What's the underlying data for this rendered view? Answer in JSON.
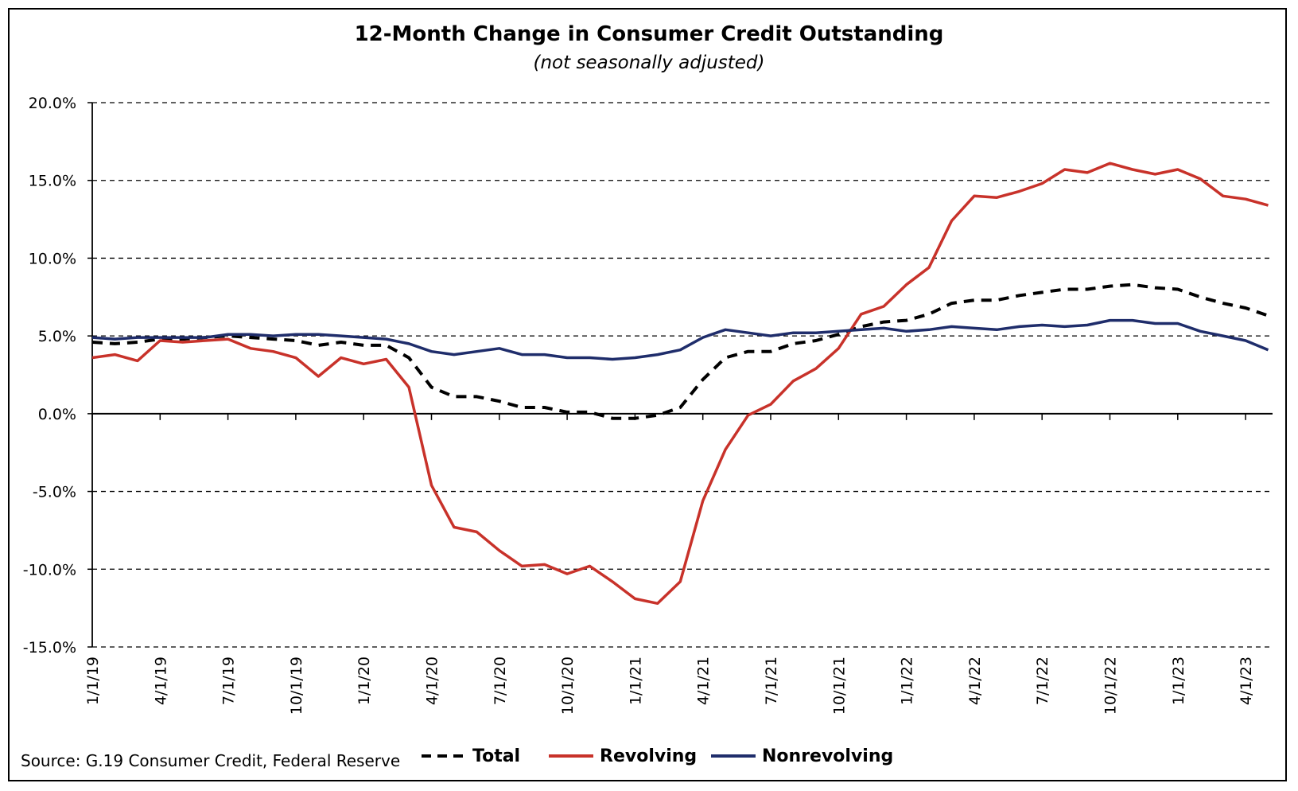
{
  "chart_data": {
    "type": "line",
    "title": "12-Month Change in Consumer Credit Outstanding",
    "subtitle": "(not seasonally adjusted)",
    "source": "Source: G.19 Consumer Credit, Federal Reserve",
    "ylim": [
      -15,
      20
    ],
    "y_ticks": [
      20,
      15,
      10,
      5,
      0,
      -5,
      -10,
      -15
    ],
    "y_tick_labels": [
      "20.0%",
      "15.0%",
      "10.0%",
      "5.0%",
      "0.0%",
      "-5.0%",
      "-10.0%",
      "-15.0%"
    ],
    "x_tick_labels": [
      "1/1/19",
      "4/1/19",
      "7/1/19",
      "10/1/19",
      "1/1/20",
      "4/1/20",
      "7/1/20",
      "10/1/20",
      "1/1/21",
      "4/1/21",
      "7/1/21",
      "10/1/21",
      "1/1/22",
      "4/1/22",
      "7/1/22",
      "10/1/22",
      "1/1/23",
      "4/1/23"
    ],
    "x": [
      "2019-01",
      "2019-02",
      "2019-03",
      "2019-04",
      "2019-05",
      "2019-06",
      "2019-07",
      "2019-08",
      "2019-09",
      "2019-10",
      "2019-11",
      "2019-12",
      "2020-01",
      "2020-02",
      "2020-03",
      "2020-04",
      "2020-05",
      "2020-06",
      "2020-07",
      "2020-08",
      "2020-09",
      "2020-10",
      "2020-11",
      "2020-12",
      "2021-01",
      "2021-02",
      "2021-03",
      "2021-04",
      "2021-05",
      "2021-06",
      "2021-07",
      "2021-08",
      "2021-09",
      "2021-10",
      "2021-11",
      "2021-12",
      "2022-01",
      "2022-02",
      "2022-03",
      "2022-04",
      "2022-05",
      "2022-06",
      "2022-07",
      "2022-08",
      "2022-09",
      "2022-10",
      "2022-11",
      "2022-12",
      "2023-01",
      "2023-02",
      "2023-03",
      "2023-04",
      "2023-05"
    ],
    "grid": "horizontal dashed",
    "legend": "bottom",
    "series": [
      {
        "name": "Total",
        "color": "#000000",
        "style": "dashed",
        "values": [
          4.6,
          4.5,
          4.6,
          4.8,
          4.8,
          4.9,
          5.0,
          4.9,
          4.8,
          4.7,
          4.4,
          4.6,
          4.4,
          4.4,
          3.6,
          1.7,
          1.1,
          1.1,
          0.8,
          0.4,
          0.4,
          0.1,
          0.1,
          -0.3,
          -0.3,
          -0.1,
          0.4,
          2.2,
          3.6,
          4.0,
          4.0,
          4.5,
          4.7,
          5.1,
          5.6,
          5.9,
          6.0,
          6.4,
          7.1,
          7.3,
          7.3,
          7.6,
          7.8,
          8.0,
          8.0,
          8.2,
          8.3,
          8.1,
          8.0,
          7.5,
          7.1,
          6.8,
          6.3
        ]
      },
      {
        "name": "Revolving",
        "color": "#c8322a",
        "style": "solid",
        "values": [
          3.6,
          3.8,
          3.4,
          4.7,
          4.6,
          4.7,
          4.8,
          4.2,
          4.0,
          3.6,
          2.4,
          3.6,
          3.2,
          3.5,
          1.7,
          -4.6,
          -7.3,
          -7.6,
          -8.8,
          -9.8,
          -9.7,
          -10.3,
          -9.8,
          -10.8,
          -11.9,
          -12.2,
          -10.8,
          -5.6,
          -2.3,
          -0.1,
          0.6,
          2.1,
          2.9,
          4.2,
          6.4,
          6.9,
          8.3,
          9.4,
          12.4,
          14.0,
          13.9,
          14.3,
          14.8,
          15.7,
          15.5,
          16.1,
          15.7,
          15.4,
          15.7,
          15.1,
          14.0,
          13.8,
          13.4
        ]
      },
      {
        "name": "Nonrevolving",
        "color": "#1f2d6b",
        "style": "solid",
        "values": [
          4.9,
          4.8,
          4.9,
          4.9,
          4.9,
          4.9,
          5.1,
          5.1,
          5.0,
          5.1,
          5.1,
          5.0,
          4.9,
          4.8,
          4.5,
          4.0,
          3.8,
          4.0,
          4.2,
          3.8,
          3.8,
          3.6,
          3.6,
          3.5,
          3.6,
          3.8,
          4.1,
          4.9,
          5.4,
          5.2,
          5.0,
          5.2,
          5.2,
          5.3,
          5.4,
          5.5,
          5.3,
          5.4,
          5.6,
          5.5,
          5.4,
          5.6,
          5.7,
          5.6,
          5.7,
          6.0,
          6.0,
          5.8,
          5.8,
          5.3,
          5.0,
          4.7,
          4.1
        ]
      }
    ]
  }
}
